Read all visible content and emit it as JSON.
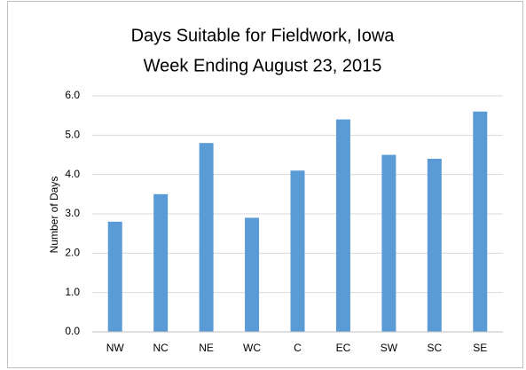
{
  "chart_data": {
    "type": "bar",
    "title": "Days Suitable for Fieldwork, Iowa",
    "subtitle": "Week Ending August 23, 2015",
    "y_label": "Number of Days",
    "categories": [
      "NW",
      "NC",
      "NE",
      "WC",
      "C",
      "EC",
      "SW",
      "SC",
      "SE"
    ],
    "values": [
      2.8,
      3.5,
      4.8,
      2.9,
      4.1,
      5.4,
      4.5,
      4.4,
      5.6
    ],
    "color": "#5b9bd5",
    "ylim": [
      0,
      6
    ],
    "yticks": [
      {
        "value": 0,
        "label": "0.0"
      },
      {
        "value": 1,
        "label": "1.0"
      },
      {
        "value": 2,
        "label": "2.0"
      },
      {
        "value": 3,
        "label": "3.0"
      },
      {
        "value": 4,
        "label": "4.0"
      },
      {
        "value": 5,
        "label": "5.0"
      },
      {
        "value": 6,
        "label": "6.0"
      }
    ],
    "grid": true
  }
}
